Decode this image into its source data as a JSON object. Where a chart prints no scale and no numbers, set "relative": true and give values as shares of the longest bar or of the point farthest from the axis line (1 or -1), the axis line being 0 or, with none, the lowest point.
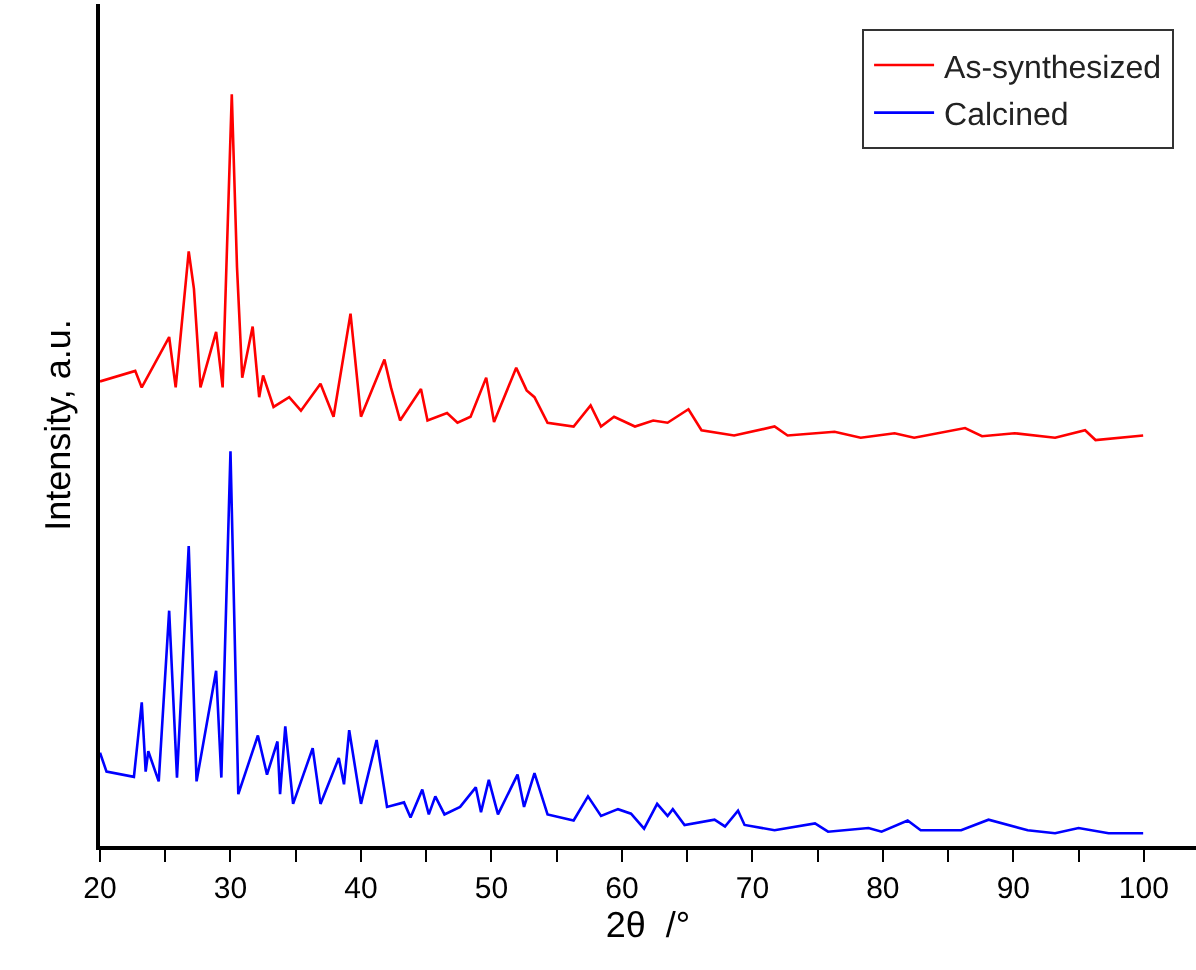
{
  "chart_data": {
    "type": "line",
    "relative": true,
    "xlabel": "2θ  /°",
    "ylabel": "Intensity, a.u.",
    "xlim": [
      20,
      104
    ],
    "xticks": [
      20,
      {
        "value": 25,
        "label": null
      },
      30,
      {
        "value": 35,
        "label": null
      },
      40,
      {
        "value": 45,
        "label": null
      },
      50,
      {
        "value": 55,
        "label": null
      },
      60,
      {
        "value": 65,
        "label": null
      },
      70,
      {
        "value": 75,
        "label": null
      },
      80,
      {
        "value": 85,
        "label": null
      },
      90,
      {
        "value": 95,
        "label": null
      },
      100
    ],
    "legend": "top right",
    "marker": "none",
    "line_style": "solid",
    "series": [
      {
        "name": "As-synthesized",
        "color": "#ff0000",
        "x": [
          20.0,
          22.7,
          23.2,
          25.3,
          25.8,
          26.8,
          27.2,
          27.7,
          28.9,
          29.4,
          30.1,
          30.5,
          30.9,
          31.7,
          32.2,
          32.5,
          33.3,
          34.5,
          35.4,
          36.9,
          37.9,
          39.2,
          40.0,
          41.8,
          42.3,
          43.0,
          44.6,
          45.1,
          46.6,
          47.4,
          48.4,
          49.6,
          50.2,
          51.9,
          52.7,
          53.3,
          54.3,
          56.3,
          57.6,
          58.4,
          59.4,
          61.0,
          62.4,
          63.5,
          65.1,
          66.1,
          68.6,
          71.7,
          72.7,
          76.3,
          78.3,
          80.9,
          82.4,
          86.3,
          87.6,
          90.1,
          93.2,
          95.5,
          96.3,
          99.95
        ],
        "values": [
          0.618,
          0.632,
          0.61,
          0.677,
          0.61,
          0.791,
          0.741,
          0.61,
          0.684,
          0.61,
          1.0,
          0.77,
          0.623,
          0.691,
          0.597,
          0.626,
          0.584,
          0.597,
          0.579,
          0.615,
          0.571,
          0.708,
          0.571,
          0.647,
          0.61,
          0.566,
          0.608,
          0.566,
          0.576,
          0.563,
          0.571,
          0.623,
          0.564,
          0.636,
          0.606,
          0.597,
          0.563,
          0.558,
          0.586,
          0.558,
          0.571,
          0.558,
          0.566,
          0.563,
          0.581,
          0.553,
          0.546,
          0.558,
          0.546,
          0.551,
          0.543,
          0.549,
          0.543,
          0.556,
          0.545,
          0.549,
          0.543,
          0.553,
          0.54,
          0.546
        ]
      },
      {
        "name": "Calcined",
        "color": "#0000ff",
        "x": [
          20.0,
          20.5,
          22.6,
          23.2,
          23.5,
          23.7,
          24.5,
          25.3,
          25.9,
          26.8,
          27.4,
          28.9,
          29.3,
          30.0,
          30.6,
          32.1,
          32.8,
          33.6,
          33.8,
          34.2,
          34.8,
          36.3,
          36.9,
          38.3,
          38.7,
          39.1,
          40.0,
          41.2,
          42.0,
          43.3,
          43.8,
          44.7,
          45.2,
          45.7,
          46.4,
          47.6,
          48.8,
          49.2,
          49.8,
          50.5,
          52.0,
          52.5,
          53.3,
          54.3,
          56.3,
          57.4,
          58.4,
          59.7,
          60.7,
          61.7,
          62.7,
          63.5,
          63.9,
          64.8,
          67.1,
          67.9,
          68.9,
          69.4,
          71.7,
          74.8,
          75.8,
          78.9,
          79.9,
          81.9,
          82.9,
          86.0,
          88.1,
          91.1,
          93.2,
          95.0,
          97.3,
          99.95
        ],
        "values": [
          0.124,
          0.099,
          0.092,
          0.191,
          0.099,
          0.126,
          0.086,
          0.313,
          0.091,
          0.399,
          0.086,
          0.233,
          0.091,
          0.525,
          0.069,
          0.147,
          0.095,
          0.139,
          0.069,
          0.159,
          0.056,
          0.13,
          0.056,
          0.117,
          0.082,
          0.154,
          0.056,
          0.141,
          0.052,
          0.058,
          0.038,
          0.075,
          0.042,
          0.066,
          0.042,
          0.052,
          0.078,
          0.045,
          0.088,
          0.042,
          0.095,
          0.052,
          0.097,
          0.042,
          0.034,
          0.066,
          0.04,
          0.049,
          0.043,
          0.023,
          0.056,
          0.04,
          0.049,
          0.028,
          0.035,
          0.026,
          0.047,
          0.028,
          0.021,
          0.03,
          0.019,
          0.024,
          0.019,
          0.034,
          0.021,
          0.021,
          0.035,
          0.021,
          0.017,
          0.024,
          0.017,
          0.017
        ]
      }
    ]
  }
}
